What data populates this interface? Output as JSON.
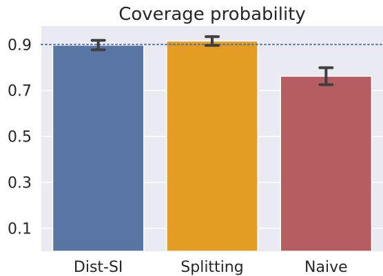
{
  "chart_data": {
    "type": "bar",
    "title": "Coverage probability",
    "xlabel": "",
    "ylabel": "",
    "categories": [
      "Dist-SI",
      "Splitting",
      "Naive"
    ],
    "values": [
      0.897,
      0.915,
      0.762
    ],
    "error_bars": [
      {
        "low": 0.877,
        "high": 0.918
      },
      {
        "low": 0.896,
        "high": 0.934
      },
      {
        "low": 0.725,
        "high": 0.799
      }
    ],
    "bar_colors": [
      "#5975a4",
      "#e29d22",
      "#b55d60"
    ],
    "error_bar_color": "#3f3f3f",
    "reference_line": {
      "value": 0.9,
      "style": "dotted",
      "color": "#4c72b0"
    },
    "ylim": [
      0.0,
      0.98
    ],
    "yticks": [
      0.1,
      0.3,
      0.5,
      0.7,
      0.9
    ],
    "ytick_labels": [
      "0.1",
      "0.3",
      "0.5",
      "0.7",
      "0.9"
    ],
    "grid": true,
    "background": "#eaeaf2",
    "grid_color": "#ffffff"
  }
}
